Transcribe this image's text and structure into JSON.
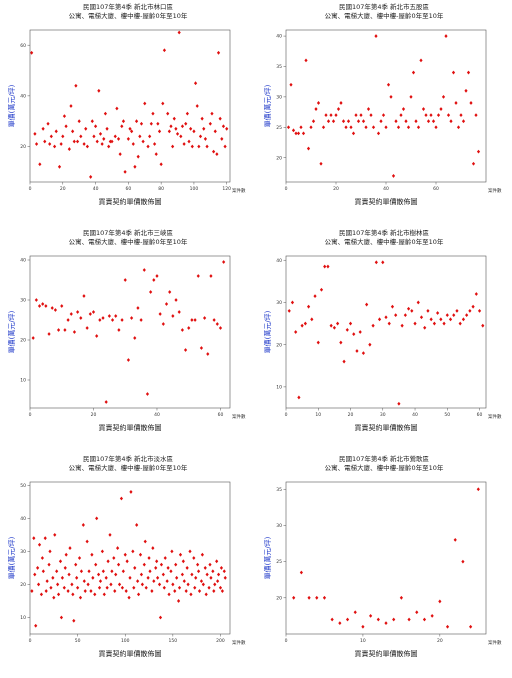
{
  "panels": [
    {
      "title": "民國107年第4季  新北市林口區",
      "subtitle": "公寓、電梯大廈、樓中樓-屋齡0年至10年",
      "ylabel": "單價(萬元/坪)",
      "xlabel": "買賣契約單價散佈圖",
      "unit": "案件數"
    },
    {
      "title": "民國107年第4季  新北市五股區",
      "subtitle": "公寓、電梯大廈、樓中樓-屋齡0年至10年",
      "ylabel": "單價(萬元/坪)",
      "xlabel": "買賣契約單價散佈圖",
      "unit": "案件數"
    },
    {
      "title": "民國107年第4季  新北市三峽區",
      "subtitle": "公寓、電梯大廈、樓中樓-屋齡0年至10年",
      "ylabel": "單價(萬元/坪)",
      "xlabel": "買賣契約單價散佈圖",
      "unit": "案件數"
    },
    {
      "title": "民國107年第4季  新北市樹林區",
      "subtitle": "公寓、電梯大廈、樓中樓-屋齡0年至10年",
      "ylabel": "單價(萬元/坪)",
      "xlabel": "買賣契約單價散佈圖",
      "unit": "案件數"
    },
    {
      "title": "民國107年第4季  新北市淡水區",
      "subtitle": "公寓、電梯大廈、樓中樓-屋齡0年至10年",
      "ylabel": "單價(萬元/坪)",
      "xlabel": "買賣契約單價散佈圖",
      "unit": "案件數"
    },
    {
      "title": "民國107年第4季  新北市鶯歌區",
      "subtitle": "公寓、電梯大廈、樓中樓-屋齡0年至10年",
      "ylabel": "單價(萬元/坪)",
      "xlabel": "買賣契約單價散佈圖",
      "unit": "案件數"
    }
  ],
  "colors": {
    "point": "#e01010",
    "ylabel": "#1a34c8"
  },
  "chart_data": [
    {
      "type": "scatter",
      "title": "民國107年第4季  新北市林口區",
      "xlabel": "買賣契約單價散佈圖",
      "ylabel": "單價(萬元/坪)",
      "xlim": [
        0,
        122
      ],
      "ylim": [
        6,
        66
      ],
      "xticks": [
        0,
        20,
        40,
        60,
        80,
        100,
        120
      ],
      "yticks": [
        20,
        40,
        60
      ],
      "grid": false,
      "series": [
        {
          "x": [
            1,
            3,
            4,
            6,
            8,
            9,
            11,
            12,
            13,
            15,
            16,
            18,
            19,
            20,
            21,
            22,
            24,
            25,
            26,
            27,
            28,
            29,
            30,
            31,
            33,
            34,
            35,
            37,
            38,
            39,
            40,
            41,
            42,
            43,
            44,
            45,
            46,
            47,
            48,
            49,
            50,
            52,
            53,
            54,
            55,
            56,
            57,
            58,
            60,
            61,
            62,
            63,
            64,
            65,
            66,
            67,
            68,
            69,
            70,
            72,
            73,
            74,
            75,
            76,
            77,
            78,
            79,
            80,
            81,
            82,
            84,
            85,
            86,
            87,
            88,
            89,
            90,
            91,
            92,
            93,
            94,
            95,
            96,
            97,
            98,
            99,
            100,
            101,
            102,
            103,
            104,
            105,
            106,
            107,
            108,
            110,
            111,
            112,
            113,
            114,
            115,
            116,
            117,
            118,
            119,
            120
          ],
          "y": [
            57,
            25,
            21,
            13,
            27,
            22,
            29,
            21,
            24,
            20,
            26,
            12,
            21,
            24,
            32,
            28,
            19,
            36,
            26,
            22,
            44,
            22,
            30,
            24,
            21,
            27,
            20,
            8,
            30,
            24,
            28,
            22,
            42,
            25,
            21,
            23,
            33,
            27,
            20,
            22,
            22,
            24,
            35,
            23,
            17,
            28,
            30,
            10,
            23,
            27,
            26,
            21,
            12,
            30,
            16,
            24,
            29,
            22,
            37,
            20,
            24,
            29,
            33,
            21,
            17,
            29,
            26,
            13,
            37,
            58,
            33,
            26,
            28,
            20,
            31,
            27,
            25,
            65,
            24,
            28,
            21,
            29,
            33,
            22,
            27,
            20,
            26,
            45,
            36,
            20,
            24,
            31,
            27,
            23,
            20,
            29,
            33,
            18,
            26,
            17,
            57,
            31,
            23,
            28,
            20,
            27
          ]
        }
      ]
    },
    {
      "type": "scatter",
      "title": "民國107年第4季  新北市五股區",
      "xlabel": "買賣契約單價散佈圖",
      "ylabel": "單價(萬元/坪)",
      "xlim": [
        0,
        80
      ],
      "ylim": [
        16,
        41
      ],
      "xticks": [
        0,
        20,
        40,
        60
      ],
      "yticks": [
        20,
        25,
        30,
        35,
        40
      ],
      "grid": false,
      "series": [
        {
          "x": [
            1,
            2,
            3,
            4,
            5,
            6,
            7,
            8,
            9,
            10,
            11,
            12,
            13,
            14,
            15,
            16,
            17,
            18,
            19,
            20,
            21,
            22,
            23,
            24,
            25,
            26,
            27,
            28,
            29,
            30,
            31,
            32,
            33,
            34,
            35,
            36,
            37,
            38,
            39,
            40,
            41,
            42,
            43,
            44,
            45,
            46,
            47,
            48,
            49,
            50,
            51,
            52,
            53,
            54,
            55,
            56,
            57,
            58,
            59,
            60,
            61,
            62,
            63,
            64,
            65,
            66,
            67,
            68,
            69,
            70,
            71,
            72,
            73,
            74,
            75,
            76,
            77
          ],
          "y": [
            25,
            32,
            24.5,
            24,
            24,
            25,
            24,
            36,
            21.5,
            25,
            26,
            28,
            29,
            19,
            25,
            27,
            26,
            27,
            26,
            27,
            28,
            29,
            26,
            25,
            26,
            25,
            24,
            27,
            26,
            27,
            26,
            25,
            28,
            27,
            25,
            40,
            24,
            26,
            27,
            25,
            32,
            30,
            17,
            26,
            25,
            27,
            28,
            26,
            25,
            30,
            34,
            26,
            25,
            36,
            28,
            27,
            26,
            27,
            26,
            25,
            27,
            28,
            30,
            40,
            27,
            26,
            34,
            29,
            25,
            27,
            26,
            31,
            34,
            29,
            19,
            27,
            21
          ]
        }
      ]
    },
    {
      "type": "scatter",
      "title": "民國107年第4季  新北市三峽區",
      "xlabel": "買賣契約單價散佈圖",
      "ylabel": "單價(萬元/坪)",
      "xlim": [
        0,
        63
      ],
      "ylim": [
        3,
        41
      ],
      "xticks": [
        0,
        20,
        40,
        60
      ],
      "yticks": [
        10,
        20,
        30,
        40
      ],
      "grid": false,
      "series": [
        {
          "x": [
            1,
            2,
            3,
            4,
            5,
            6,
            7,
            8,
            9,
            10,
            11,
            12,
            13,
            14,
            15,
            16,
            17,
            18,
            19,
            20,
            21,
            22,
            23,
            24,
            25,
            26,
            27,
            28,
            29,
            30,
            31,
            32,
            33,
            34,
            35,
            36,
            37,
            38,
            39,
            40,
            41,
            42,
            43,
            44,
            45,
            46,
            47,
            48,
            49,
            50,
            51,
            52,
            53,
            54,
            55,
            56,
            57,
            58,
            59,
            60,
            61
          ],
          "y": [
            20.5,
            30,
            28.5,
            29,
            28.5,
            21.5,
            28,
            27.5,
            22.5,
            28.5,
            22.5,
            25,
            26.5,
            22,
            27,
            25.5,
            31,
            23,
            26.5,
            27,
            21,
            25,
            25.5,
            4.5,
            26,
            25,
            26,
            22.5,
            25,
            35,
            15,
            25.5,
            20.5,
            28,
            25,
            37.5,
            6.5,
            32,
            35,
            36,
            26.5,
            24,
            29,
            32,
            26,
            30,
            27,
            22.5,
            17.5,
            23,
            25,
            25,
            36,
            18,
            25.5,
            16.5,
            36,
            25,
            24,
            23,
            39.5
          ]
        }
      ]
    },
    {
      "type": "scatter",
      "title": "民國107年第4季  新北市樹林區",
      "xlabel": "買賣契約單價散佈圖",
      "ylabel": "單價(萬元/坪)",
      "xlim": [
        0,
        62
      ],
      "ylim": [
        5,
        41
      ],
      "xticks": [
        0,
        10,
        20,
        30,
        40,
        50,
        60
      ],
      "yticks": [
        10,
        20,
        30,
        40
      ],
      "grid": false,
      "series": [
        {
          "x": [
            1,
            2,
            3,
            4,
            5,
            6,
            7,
            8,
            9,
            10,
            11,
            12,
            13,
            14,
            15,
            16,
            17,
            18,
            19,
            20,
            21,
            22,
            23,
            24,
            25,
            26,
            27,
            28,
            29,
            30,
            31,
            32,
            33,
            34,
            35,
            36,
            37,
            38,
            39,
            40,
            41,
            42,
            43,
            44,
            45,
            46,
            47,
            48,
            49,
            50,
            51,
            52,
            53,
            54,
            55,
            56,
            57,
            58,
            59,
            60,
            61
          ],
          "y": [
            28,
            30,
            23,
            7.5,
            24.5,
            25,
            29,
            26,
            31.5,
            20.5,
            33,
            38.5,
            38.5,
            24.5,
            24,
            25,
            20.5,
            16,
            23.5,
            25,
            22.5,
            18.5,
            23,
            18,
            29.5,
            20,
            24.5,
            39.5,
            26,
            39.5,
            26.5,
            25,
            29,
            27,
            6,
            24.5,
            27,
            28.5,
            28,
            25,
            30,
            26.5,
            24,
            28,
            26,
            25,
            27.5,
            26,
            25,
            27,
            26,
            27,
            28,
            25,
            26,
            27,
            28,
            29,
            32,
            28,
            24.5
          ]
        }
      ]
    },
    {
      "type": "scatter",
      "title": "民國107年第4季  新北市淡水區",
      "xlabel": "買賣契約單價散佈圖",
      "ylabel": "單價(萬元/坪)",
      "xlim": [
        0,
        210
      ],
      "ylim": [
        5,
        51
      ],
      "xticks": [
        0,
        50,
        100,
        150,
        200
      ],
      "yticks": [
        10,
        20,
        30,
        40,
        50
      ],
      "grid": false,
      "series": [
        {
          "x": [
            2,
            4,
            5,
            6,
            8,
            9,
            10,
            12,
            13,
            14,
            16,
            17,
            18,
            20,
            21,
            22,
            24,
            25,
            26,
            28,
            29,
            30,
            32,
            33,
            34,
            36,
            37,
            38,
            40,
            41,
            42,
            44,
            45,
            46,
            48,
            49,
            50,
            52,
            53,
            54,
            56,
            57,
            58,
            60,
            61,
            62,
            64,
            65,
            66,
            68,
            69,
            70,
            72,
            73,
            74,
            76,
            77,
            78,
            80,
            81,
            82,
            84,
            85,
            86,
            88,
            89,
            90,
            92,
            93,
            94,
            96,
            97,
            98,
            100,
            101,
            102,
            104,
            105,
            106,
            108,
            109,
            110,
            112,
            113,
            114,
            116,
            117,
            118,
            120,
            121,
            122,
            124,
            125,
            126,
            128,
            129,
            130,
            132,
            133,
            134,
            136,
            137,
            138,
            140,
            141,
            142,
            144,
            145,
            146,
            148,
            149,
            150,
            152,
            153,
            154,
            156,
            157,
            158,
            160,
            161,
            162,
            164,
            165,
            166,
            168,
            169,
            170,
            172,
            173,
            174,
            176,
            177,
            178,
            180,
            181,
            182,
            184,
            185,
            186,
            188,
            189,
            190,
            192,
            193,
            194,
            196,
            197,
            198,
            200,
            201,
            202,
            204,
            205
          ],
          "y": [
            18,
            34,
            23,
            7.5,
            25,
            20,
            32,
            17,
            28,
            24,
            34,
            18,
            21,
            26,
            30,
            19,
            22,
            16,
            35,
            24,
            20,
            17,
            27,
            10,
            22,
            19,
            25,
            29,
            18,
            23,
            31,
            20,
            17,
            9,
            26,
            22,
            19,
            28,
            16,
            24,
            38,
            21,
            18,
            33,
            20,
            24,
            18,
            29,
            22,
            17,
            26,
            40,
            23,
            19,
            21,
            30,
            24,
            17,
            22,
            19,
            27,
            35,
            20,
            24,
            28,
            18,
            23,
            31,
            26,
            20,
            46,
            19,
            24,
            29,
            18,
            27,
            16,
            22,
            48,
            30,
            19,
            25,
            38,
            21,
            17,
            29,
            23,
            20,
            26,
            33,
            19,
            22,
            28,
            24,
            18,
            31,
            21,
            25,
            27,
            22,
            20,
            10,
            26,
            23,
            19,
            28,
            21,
            25,
            17,
            24,
            30,
            20,
            18,
            26,
            22,
            15,
            19,
            29,
            23,
            27,
            21,
            18,
            25,
            20,
            30,
            17,
            23,
            28,
            19,
            22,
            26,
            24,
            18,
            21,
            29,
            20,
            25,
            17,
            23,
            19,
            26,
            22,
            24,
            18,
            20,
            27,
            21,
            23,
            19,
            25,
            18,
            24,
            22
          ]
        }
      ]
    },
    {
      "type": "scatter",
      "title": "民國107年第4季  新北市鶯歌區",
      "xlabel": "買賣契約單價散佈圖",
      "ylabel": "單價(萬元/坪)",
      "xlim": [
        0,
        26
      ],
      "ylim": [
        15,
        36
      ],
      "xticks": [
        0,
        10,
        20
      ],
      "yticks": [
        20,
        25,
        30,
        35
      ],
      "grid": false,
      "series": [
        {
          "x": [
            1,
            2,
            3,
            4,
            5,
            6,
            7,
            8,
            9,
            10,
            11,
            12,
            13,
            14,
            15,
            16,
            17,
            18,
            19,
            20,
            21,
            22,
            23,
            24,
            25
          ],
          "y": [
            20,
            23.5,
            20,
            20,
            20,
            17,
            16.5,
            17,
            18,
            16,
            17.5,
            17,
            16.5,
            17,
            20,
            17,
            18,
            17,
            17.5,
            19.5,
            16,
            28,
            25,
            16,
            35
          ]
        }
      ]
    }
  ]
}
